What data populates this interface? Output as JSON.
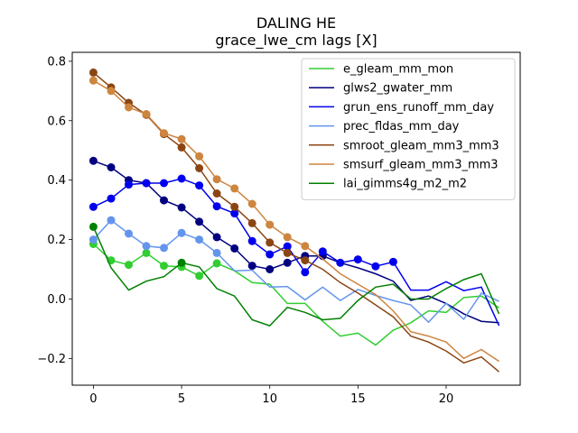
{
  "chart_data": {
    "type": "line",
    "title": "DALING HE",
    "subtitle": "grace_lwe_cm lags [X]",
    "xlabel": "",
    "ylabel": "",
    "xlim": [
      -1.2,
      24.2
    ],
    "ylim": [
      -0.29,
      0.83
    ],
    "xticks": [
      0,
      5,
      10,
      15,
      20
    ],
    "yticks": [
      -0.2,
      0.0,
      0.2,
      0.4,
      0.6,
      0.8
    ],
    "ytick_labels": [
      "−0.2",
      "0.0",
      "0.2",
      "0.4",
      "0.6",
      "0.8"
    ],
    "grid": false,
    "legend_position": "top-right",
    "x": [
      0,
      1,
      2,
      3,
      4,
      5,
      6,
      7,
      8,
      9,
      10,
      11,
      12,
      13,
      14,
      15,
      16,
      17,
      18,
      19,
      20,
      21,
      22,
      23
    ],
    "series": [
      {
        "name": "e_gleam_mm_mon",
        "color": "#32cd32",
        "values": [
          0.185,
          0.13,
          0.115,
          0.155,
          0.112,
          0.108,
          0.078,
          0.12,
          0.095,
          0.055,
          0.05,
          -0.015,
          -0.015,
          -0.075,
          -0.125,
          -0.115,
          -0.155,
          -0.105,
          -0.08,
          -0.04,
          -0.045,
          0.005,
          0.01,
          -0.03
        ],
        "markers": [
          0,
          1,
          2,
          3,
          4,
          5,
          6,
          7
        ]
      },
      {
        "name": "glws2_gwater_mm",
        "color": "#000080",
        "values": [
          0.465,
          0.443,
          0.4,
          0.39,
          0.332,
          0.308,
          0.26,
          0.208,
          0.17,
          0.112,
          0.1,
          0.122,
          0.145,
          0.145,
          0.122,
          0.105,
          0.085,
          0.06,
          -0.005,
          0.01,
          -0.015,
          -0.05,
          -0.075,
          -0.08
        ],
        "markers": [
          0,
          1,
          2,
          3,
          4,
          5,
          6,
          7,
          8,
          9,
          10,
          11,
          12,
          13
        ]
      },
      {
        "name": "grun_ens_runoff_mm_day",
        "color": "#0000ee",
        "values": [
          0.31,
          0.338,
          0.385,
          0.39,
          0.39,
          0.405,
          0.382,
          0.312,
          0.288,
          0.195,
          0.15,
          0.177,
          0.09,
          0.16,
          0.122,
          0.133,
          0.11,
          0.125,
          0.03,
          0.03,
          0.058,
          0.028,
          0.04,
          -0.09
        ],
        "markers": [
          0,
          1,
          2,
          3,
          4,
          5,
          6,
          7,
          8,
          9,
          10,
          11,
          12,
          13,
          14,
          15,
          16,
          17
        ]
      },
      {
        "name": "prec_fldas_mm_day",
        "color": "#6495ed",
        "values": [
          0.2,
          0.265,
          0.22,
          0.178,
          0.172,
          0.222,
          0.2,
          0.155,
          0.095,
          0.097,
          0.04,
          0.042,
          -0.003,
          0.04,
          -0.005,
          0.032,
          0.012,
          -0.005,
          -0.02,
          -0.078,
          -0.015,
          -0.068,
          0.02,
          -0.008
        ],
        "markers": [
          0,
          1,
          2,
          3,
          4,
          5,
          6,
          7
        ]
      },
      {
        "name": "smroot_gleam_mm3_mm3",
        "color": "#8b4513",
        "values": [
          0.762,
          0.712,
          0.66,
          0.62,
          0.555,
          0.51,
          0.44,
          0.355,
          0.31,
          0.255,
          0.19,
          0.155,
          0.13,
          0.1,
          0.055,
          0.02,
          -0.02,
          -0.06,
          -0.125,
          -0.145,
          -0.175,
          -0.215,
          -0.195,
          -0.245
        ],
        "markers": [
          0,
          1,
          2,
          3,
          4,
          5,
          6,
          7,
          8,
          9,
          10,
          11,
          12
        ]
      },
      {
        "name": "smsurf_gleam_mm3_mm3",
        "color": "#cd853f",
        "values": [
          0.735,
          0.7,
          0.645,
          0.622,
          0.558,
          0.538,
          0.48,
          0.403,
          0.372,
          0.32,
          0.25,
          0.208,
          0.178,
          0.135,
          0.085,
          0.05,
          0.015,
          -0.04,
          -0.11,
          -0.125,
          -0.145,
          -0.2,
          -0.17,
          -0.21
        ],
        "markers": [
          0,
          1,
          2,
          3,
          4,
          5,
          6,
          7,
          8,
          9,
          10,
          11,
          12
        ]
      },
      {
        "name": "lai_gimms4g_m2_m2",
        "color": "#008000",
        "values": [
          0.243,
          0.105,
          0.03,
          0.06,
          0.075,
          0.122,
          0.108,
          0.035,
          0.01,
          -0.07,
          -0.09,
          -0.028,
          -0.045,
          -0.07,
          -0.065,
          -0.005,
          0.04,
          0.05,
          0.0,
          0.0,
          0.035,
          0.065,
          0.085,
          -0.05
        ],
        "markers": [
          0,
          5
        ]
      }
    ]
  }
}
